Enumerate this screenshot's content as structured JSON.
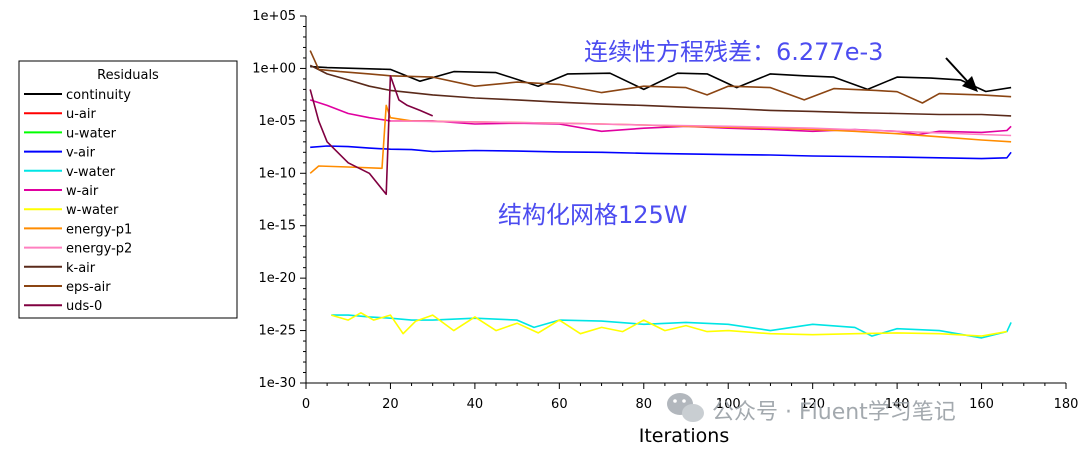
{
  "chart_data": {
    "type": "line",
    "xlabel": "Iterations",
    "ylabel": "",
    "y_scale": "log",
    "xlim": [
      0,
      180
    ],
    "ylim": [
      1e-30,
      100000.0
    ],
    "x_ticks": [
      0,
      20,
      40,
      60,
      80,
      100,
      120,
      140,
      160,
      180
    ],
    "y_ticks": [
      "1e+05",
      "1e+00",
      "1e-05",
      "1e-10",
      "1e-15",
      "1e-20",
      "1e-25",
      "1e-30"
    ],
    "legend": {
      "title": "Residuals",
      "placement": "left"
    },
    "annotations": [
      "连续性方程残差：6.277e-3",
      "结构化网格125W"
    ],
    "watermark": "公众号 · Fluent学习笔记",
    "series": [
      {
        "name": "continuity",
        "color": "#000000",
        "x": [
          1,
          5,
          12,
          20,
          27,
          35,
          45,
          55,
          62,
          72,
          80,
          88,
          95,
          102,
          110,
          118,
          125,
          133,
          140,
          148,
          155,
          161,
          167
        ],
        "y": [
          1.5,
          1.2,
          1.0,
          0.8,
          0.06,
          0.5,
          0.4,
          0.02,
          0.3,
          0.35,
          0.01,
          0.35,
          0.3,
          0.015,
          0.3,
          0.2,
          0.15,
          0.01,
          0.15,
          0.12,
          0.08,
          0.006277,
          0.015
        ]
      },
      {
        "name": "u-air",
        "color": "#ff0000",
        "x": [],
        "y": []
      },
      {
        "name": "u-water",
        "color": "#00ff00",
        "x": [],
        "y": []
      },
      {
        "name": "v-air",
        "color": "#0000ff",
        "x": [
          1,
          5,
          10,
          15,
          20,
          25,
          30,
          40,
          50,
          60,
          70,
          80,
          90,
          100,
          110,
          120,
          130,
          140,
          150,
          160,
          166,
          167
        ],
        "y": [
          3e-08,
          4e-08,
          3.5e-08,
          2.5e-08,
          2e-08,
          1.8e-08,
          1.2e-08,
          1.5e-08,
          1.3e-08,
          1.1e-08,
          1e-08,
          8e-09,
          7e-09,
          6e-09,
          5.5e-09,
          4.5e-09,
          4e-09,
          3.5e-09,
          3e-09,
          2.5e-09,
          3e-09,
          1e-08
        ]
      },
      {
        "name": "v-water",
        "color": "#00e5e5",
        "x": [
          6,
          10,
          15,
          20,
          25,
          30,
          40,
          50,
          54,
          60,
          70,
          80,
          90,
          100,
          110,
          120,
          130,
          134,
          140,
          150,
          160,
          166,
          167
        ],
        "y": [
          3e-24,
          3e-24,
          2e-24,
          1.5e-24,
          1e-24,
          1e-24,
          1.5e-24,
          1e-24,
          2e-25,
          1e-24,
          8e-25,
          4e-25,
          6e-25,
          4e-25,
          1e-25,
          4e-25,
          2e-25,
          3e-26,
          1.5e-25,
          1e-25,
          2e-26,
          8e-26,
          6e-25
        ]
      },
      {
        "name": "w-air",
        "color": "#e000a0",
        "x": [
          1,
          5,
          10,
          15,
          20,
          30,
          40,
          50,
          60,
          70,
          80,
          90,
          100,
          110,
          120,
          130,
          140,
          145,
          150,
          160,
          166,
          167
        ],
        "y": [
          0.001,
          0.0003,
          5e-05,
          2e-05,
          1e-05,
          1e-05,
          5e-06,
          6e-06,
          5e-06,
          1e-06,
          2e-06,
          3e-06,
          2e-06,
          1.5e-06,
          1e-06,
          1.5e-06,
          1e-06,
          5e-07,
          1e-06,
          8e-07,
          1.2e-06,
          3e-06
        ]
      },
      {
        "name": "w-water",
        "color": "#ffff00",
        "x": [
          6,
          10,
          13,
          16,
          20,
          23,
          26,
          30,
          35,
          40,
          45,
          50,
          55,
          60,
          65,
          70,
          75,
          80,
          85,
          90,
          95,
          100,
          110,
          120,
          130,
          140,
          150,
          160,
          166
        ],
        "y": [
          3e-24,
          1e-24,
          5e-24,
          1e-24,
          3e-24,
          5e-26,
          8e-25,
          3e-24,
          1e-25,
          2e-24,
          1e-25,
          5e-25,
          6e-26,
          1e-24,
          5e-26,
          2e-25,
          8e-26,
          1e-24,
          1e-25,
          3e-25,
          8e-26,
          1e-25,
          5e-26,
          4e-26,
          5e-26,
          6e-26,
          5e-26,
          3e-26,
          8e-26
        ]
      },
      {
        "name": "energy-p1",
        "color": "#ff8c00",
        "x": [
          1,
          3,
          10,
          18,
          19,
          20,
          25,
          30,
          40,
          50,
          60,
          70,
          80,
          90,
          100,
          110,
          120,
          130,
          140,
          150,
          160,
          167
        ],
        "y": [
          1e-10,
          5e-10,
          4e-10,
          3e-10,
          0.0003,
          2e-05,
          1e-05,
          9e-06,
          8e-06,
          7e-06,
          6e-06,
          5e-06,
          4e-06,
          3e-06,
          2.5e-06,
          2e-06,
          1.5e-06,
          1e-06,
          6e-07,
          3e-07,
          1.5e-07,
          1e-07
        ]
      },
      {
        "name": "energy-p2",
        "color": "#ff80c0",
        "x": [
          20,
          40,
          60,
          80,
          100,
          120,
          140,
          160,
          167
        ],
        "y": [
          1e-05,
          8e-06,
          6e-06,
          4e-06,
          3e-06,
          2e-06,
          1e-06,
          5e-07,
          4e-07
        ]
      },
      {
        "name": "k-air",
        "color": "#5a2a1a",
        "x": [
          1,
          5,
          10,
          15,
          20,
          30,
          40,
          50,
          60,
          70,
          80,
          90,
          100,
          110,
          120,
          130,
          140,
          150,
          160,
          167
        ],
        "y": [
          2,
          0.3,
          0.08,
          0.02,
          0.008,
          0.003,
          0.0015,
          0.001,
          0.0006,
          0.0004,
          0.0003,
          0.0002,
          0.00015,
          0.0001,
          8e-05,
          6e-05,
          5e-05,
          4e-05,
          4e-05,
          3e-05
        ]
      },
      {
        "name": "eps-air",
        "color": "#8b4513",
        "x": [
          1,
          3,
          8,
          15,
          20,
          30,
          40,
          50,
          60,
          70,
          80,
          90,
          95,
          100,
          110,
          118,
          125,
          135,
          140,
          146,
          150,
          160,
          167
        ],
        "y": [
          50,
          0.8,
          0.5,
          0.3,
          0.2,
          0.15,
          0.02,
          0.05,
          0.03,
          0.005,
          0.02,
          0.015,
          0.003,
          0.02,
          0.015,
          0.001,
          0.012,
          0.008,
          0.006,
          0.0005,
          0.004,
          0.003,
          0.002
        ]
      },
      {
        "name": "uds-0",
        "color": "#800040",
        "x": [
          1,
          3,
          5,
          10,
          15,
          19,
          20,
          22,
          24,
          27,
          30
        ],
        "y": [
          0.01,
          1e-05,
          1e-07,
          1e-09,
          1e-10,
          1e-12,
          0.2,
          0.001,
          0.0003,
          0.0001,
          3e-05
        ]
      }
    ]
  }
}
